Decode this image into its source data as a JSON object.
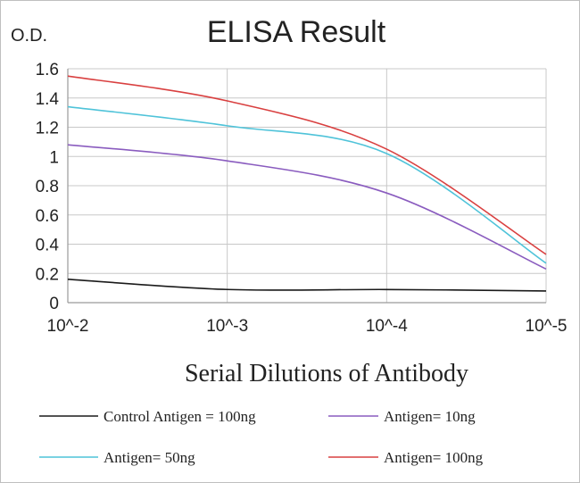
{
  "chart_data": {
    "type": "line",
    "title": "ELISA Result",
    "ylabel": "O.D.",
    "xlabel": "Serial Dilutions of Antibody",
    "categories": [
      "10^-2",
      "10^-3",
      "10^-4",
      "10^-5"
    ],
    "ylim": [
      0,
      1.6
    ],
    "yticks": [
      "0",
      "0.2",
      "0.4",
      "0.6",
      "0.8",
      "1",
      "1.2",
      "1.4",
      "1.6"
    ],
    "grid": true,
    "legend_position": "bottom",
    "series": [
      {
        "name": "Control Antigen = 100ng",
        "color": "#1a1a1a",
        "values": [
          0.16,
          0.09,
          0.09,
          0.08
        ]
      },
      {
        "name": "Antigen= 10ng",
        "color": "#8a5cbf",
        "values": [
          1.08,
          0.97,
          0.75,
          0.23
        ]
      },
      {
        "name": "Antigen= 50ng",
        "color": "#4fc3d9",
        "values": [
          1.34,
          1.21,
          1.02,
          0.27
        ]
      },
      {
        "name": "Antigen= 100ng",
        "color": "#d94040",
        "values": [
          1.55,
          1.38,
          1.05,
          0.33
        ]
      }
    ]
  }
}
